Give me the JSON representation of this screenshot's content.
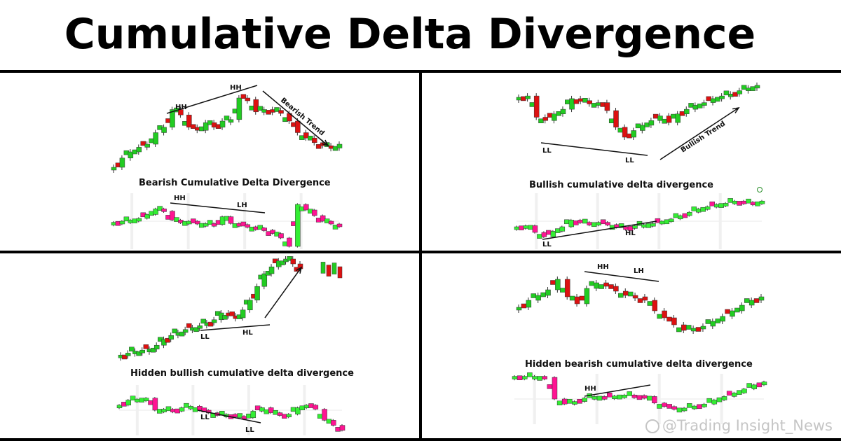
{
  "title": "Cumulative Delta Divergence",
  "watermark": "@Trading Insight_News",
  "colors": {
    "bull": "#22cc22",
    "bear": "#dd1111",
    "delta_up": "#33ee33",
    "delta_down": "#ff1493",
    "line": "#111111",
    "frame": "#000000"
  },
  "panels": [
    {
      "caption": "Bearish Cumulative Delta Divergence",
      "price_labels": [
        "HH",
        "HH"
      ],
      "trend_label": "Bearish Trend",
      "delta_labels": [
        "HH",
        "LH"
      ]
    },
    {
      "caption": "Bullish cumulative delta divergence",
      "price_labels": [
        "LL",
        "LL"
      ],
      "trend_label": "Bullish Trend",
      "delta_labels": [
        "LL",
        "HL"
      ]
    },
    {
      "caption": "Hidden bullish cumulative delta divergence",
      "price_labels": [
        "LL",
        "HL"
      ],
      "trend_label": "",
      "delta_labels": [
        "LL",
        "LL"
      ]
    },
    {
      "caption": "Hidden bearish cumulative delta divergence",
      "price_labels": [
        "HH",
        "LH"
      ],
      "trend_label": "",
      "delta_labels": [
        "HH"
      ]
    }
  ],
  "chart_data": [
    {
      "type": "candlestick",
      "title": "Bearish Cumulative Delta Divergence",
      "price_shape": [
        0.1,
        0.22,
        0.3,
        0.36,
        0.4,
        0.55,
        0.62,
        0.85,
        0.78,
        0.62,
        0.58,
        0.68,
        0.62,
        0.7,
        0.72,
        1.0,
        0.98,
        0.82,
        0.85,
        0.84,
        0.8,
        0.7,
        0.55,
        0.48,
        0.42,
        0.38,
        0.35,
        0.4
      ],
      "delta_shape": [
        0.48,
        0.5,
        0.52,
        0.55,
        0.62,
        0.72,
        0.68,
        0.52,
        0.48,
        0.5,
        0.45,
        0.46,
        0.44,
        0.58,
        0.46,
        0.44,
        0.4,
        0.38,
        0.34,
        0.28,
        0.2,
        0.05,
        0.8,
        0.7,
        0.6,
        0.5,
        0.45,
        0.4
      ]
    },
    {
      "type": "candlestick",
      "title": "Bullish cumulative delta divergence",
      "price_shape": [
        0.8,
        0.82,
        0.5,
        0.45,
        0.55,
        0.62,
        0.78,
        0.75,
        0.7,
        0.72,
        0.6,
        0.35,
        0.2,
        0.3,
        0.38,
        0.45,
        0.52,
        0.42,
        0.55,
        0.62,
        0.68,
        0.72,
        0.78,
        0.82,
        0.85,
        0.9,
        0.94,
        0.98
      ],
      "delta_shape": [
        0.4,
        0.42,
        0.3,
        0.22,
        0.32,
        0.4,
        0.52,
        0.48,
        0.46,
        0.48,
        0.44,
        0.4,
        0.38,
        0.42,
        0.44,
        0.46,
        0.5,
        0.54,
        0.6,
        0.66,
        0.72,
        0.76,
        0.8,
        0.82,
        0.86,
        0.84,
        0.82,
        0.86
      ]
    },
    {
      "type": "candlestick",
      "title": "Hidden bullish cumulative delta divergence",
      "price_shape": [
        0.02,
        0.04,
        0.06,
        0.07,
        0.08,
        0.12,
        0.18,
        0.22,
        0.25,
        0.28,
        0.3,
        0.32,
        0.35,
        0.38,
        0.45,
        0.42,
        0.4,
        0.48,
        0.58,
        0.72,
        0.85,
        0.92,
        0.98,
        1.0,
        0.95,
        0.9
      ],
      "delta_shape": [
        0.6,
        0.7,
        0.72,
        0.74,
        0.5,
        0.52,
        0.48,
        0.55,
        0.58,
        0.5,
        0.45,
        0.4,
        0.42,
        0.38,
        0.35,
        0.48,
        0.55,
        0.45,
        0.4,
        0.42,
        0.55,
        0.6,
        0.52,
        0.3,
        0.2,
        0.1
      ]
    },
    {
      "type": "candlestick",
      "title": "Hidden bearish cumulative delta divergence",
      "price_shape": [
        0.45,
        0.55,
        0.62,
        0.7,
        0.85,
        0.6,
        0.5,
        0.72,
        0.8,
        0.75,
        0.68,
        0.62,
        0.6,
        0.55,
        0.4,
        0.3,
        0.2,
        0.12,
        0.15,
        0.18,
        0.25,
        0.32,
        0.4,
        0.48,
        0.55,
        0.6
      ],
      "delta_shape": [
        0.95,
        0.95,
        0.95,
        0.93,
        0.5,
        0.4,
        0.45,
        0.52,
        0.55,
        0.54,
        0.56,
        0.58,
        0.57,
        0.55,
        0.42,
        0.35,
        0.3,
        0.32,
        0.36,
        0.4,
        0.48,
        0.55,
        0.62,
        0.7,
        0.78,
        0.84
      ]
    }
  ]
}
